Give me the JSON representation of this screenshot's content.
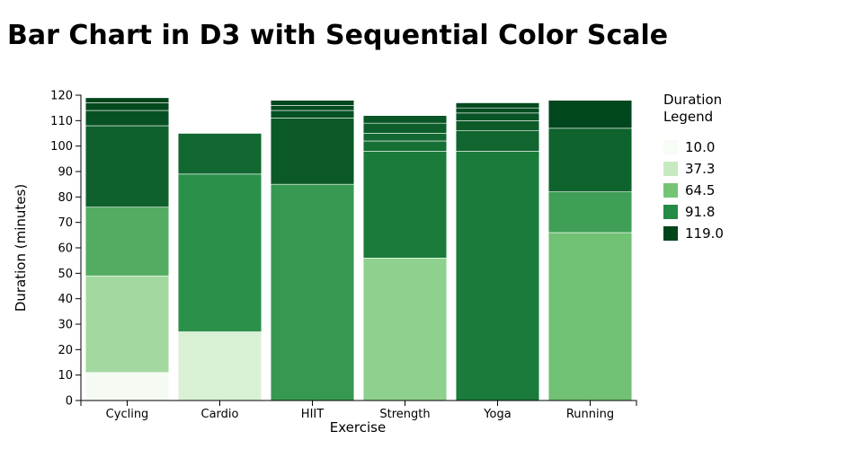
{
  "chart_data": {
    "type": "bar",
    "stacked": true,
    "title": "Bar Chart in D3 with Sequential Color Scale",
    "xlabel": "Exercise",
    "ylabel": "Duration (minutes)",
    "ylim": [
      0,
      120
    ],
    "yticks": [
      0,
      10,
      20,
      30,
      40,
      50,
      60,
      70,
      80,
      90,
      100,
      110,
      120
    ],
    "categories": [
      "Cycling",
      "Cardio",
      "HIIT",
      "Strength",
      "Yoga",
      "Running"
    ],
    "stacks": [
      [
        0,
        11,
        49,
        76,
        108,
        114,
        117,
        119
      ],
      [
        0,
        27,
        89,
        105
      ],
      [
        0,
        85,
        111,
        114,
        116,
        118
      ],
      [
        0,
        56,
        98,
        102,
        105,
        109,
        112
      ],
      [
        0,
        98,
        106,
        110,
        113,
        115,
        117
      ],
      [
        0,
        66,
        82,
        107,
        118
      ]
    ],
    "legend": {
      "title_lines": [
        "Duration",
        "Legend"
      ],
      "values": [
        "10.0",
        "37.3",
        "64.5",
        "91.8",
        "119.0"
      ]
    },
    "color_scale": {
      "domain": [
        10,
        119
      ],
      "colors": [
        "#f7fcf5",
        "#c7e9c0",
        "#74c476",
        "#238b45",
        "#00441b"
      ]
    }
  }
}
